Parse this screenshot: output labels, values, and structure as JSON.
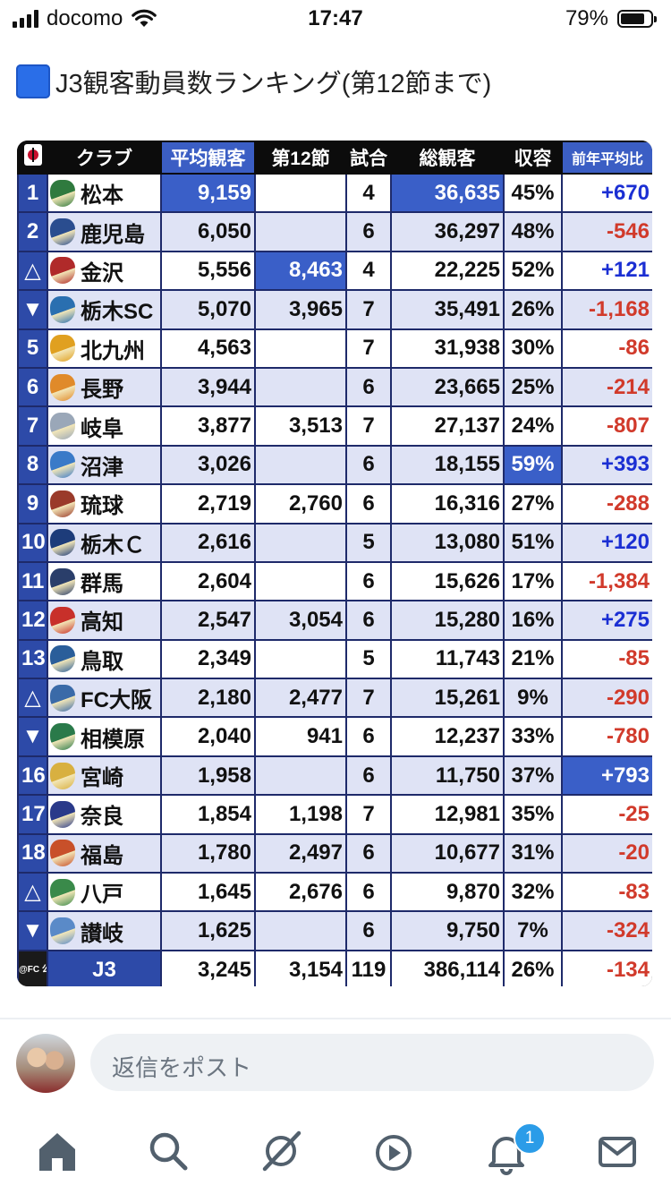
{
  "status_bar": {
    "carrier": "docomo",
    "time": "17:47",
    "battery": "79%",
    "battery_level": 0.79
  },
  "post": {
    "title": "J3観客動員数ランキング(第12節まで)"
  },
  "table": {
    "headers": {
      "club": "クラブ",
      "avg": "平均観客",
      "matchday": "第12節",
      "games": "試合",
      "total": "総観客",
      "capacity": "収容",
      "prev": "前年平均比"
    },
    "rows": [
      {
        "rank": "1",
        "club": "松本",
        "avg": "9,159",
        "md": "",
        "games": "4",
        "total": "36,635",
        "cap": "45%",
        "prev": "+670",
        "crest": "#2f7a3e"
      },
      {
        "rank": "2",
        "club": "鹿児島",
        "avg": "6,050",
        "md": "",
        "games": "6",
        "total": "36,297",
        "cap": "48%",
        "prev": "-546",
        "crest": "#2a4d8f"
      },
      {
        "rank": "△",
        "club": "金沢",
        "avg": "5,556",
        "md": "8,463",
        "games": "4",
        "total": "22,225",
        "cap": "52%",
        "prev": "+121",
        "crest": "#b02a2a"
      },
      {
        "rank": "▼",
        "club": "栃木SC",
        "avg": "5,070",
        "md": "3,965",
        "games": "7",
        "total": "35,491",
        "cap": "26%",
        "prev": "-1,168",
        "crest": "#2a6fb0"
      },
      {
        "rank": "5",
        "club": "北九州",
        "avg": "4,563",
        "md": "",
        "games": "7",
        "total": "31,938",
        "cap": "30%",
        "prev": "-86",
        "crest": "#e0a020"
      },
      {
        "rank": "6",
        "club": "長野",
        "avg": "3,944",
        "md": "",
        "games": "6",
        "total": "23,665",
        "cap": "25%",
        "prev": "-214",
        "crest": "#e08a2a"
      },
      {
        "rank": "7",
        "club": "岐阜",
        "avg": "3,877",
        "md": "3,513",
        "games": "7",
        "total": "27,137",
        "cap": "24%",
        "prev": "-807",
        "crest": "#9aa7b8"
      },
      {
        "rank": "8",
        "club": "沼津",
        "avg": "3,026",
        "md": "",
        "games": "6",
        "total": "18,155",
        "cap": "59%",
        "prev": "+393",
        "crest": "#3a7ac8"
      },
      {
        "rank": "9",
        "club": "琉球",
        "avg": "2,719",
        "md": "2,760",
        "games": "6",
        "total": "16,316",
        "cap": "27%",
        "prev": "-288",
        "crest": "#9a3a2a"
      },
      {
        "rank": "10",
        "club": "栃木Ｃ",
        "avg": "2,616",
        "md": "",
        "games": "5",
        "total": "13,080",
        "cap": "51%",
        "prev": "+120",
        "crest": "#1d3c7a"
      },
      {
        "rank": "11",
        "club": "群馬",
        "avg": "2,604",
        "md": "",
        "games": "6",
        "total": "15,626",
        "cap": "17%",
        "prev": "-1,384",
        "crest": "#2a3e6a"
      },
      {
        "rank": "12",
        "club": "高知",
        "avg": "2,547",
        "md": "3,054",
        "games": "6",
        "total": "15,280",
        "cap": "16%",
        "prev": "+275",
        "crest": "#c8302a"
      },
      {
        "rank": "13",
        "club": "鳥取",
        "avg": "2,349",
        "md": "",
        "games": "5",
        "total": "11,743",
        "cap": "21%",
        "prev": "-85",
        "crest": "#2a5e9a"
      },
      {
        "rank": "△",
        "club": "FC大阪",
        "avg": "2,180",
        "md": "2,477",
        "games": "7",
        "total": "15,261",
        "cap": "9%",
        "prev": "-290",
        "crest": "#3a6aa8"
      },
      {
        "rank": "▼",
        "club": "相模原",
        "avg": "2,040",
        "md": "941",
        "games": "6",
        "total": "12,237",
        "cap": "33%",
        "prev": "-780",
        "crest": "#2a7a4a"
      },
      {
        "rank": "16",
        "club": "宮崎",
        "avg": "1,958",
        "md": "",
        "games": "6",
        "total": "11,750",
        "cap": "37%",
        "prev": "+793",
        "crest": "#d8b040"
      },
      {
        "rank": "17",
        "club": "奈良",
        "avg": "1,854",
        "md": "1,198",
        "games": "7",
        "total": "12,981",
        "cap": "35%",
        "prev": "-25",
        "crest": "#2a3a8a"
      },
      {
        "rank": "18",
        "club": "福島",
        "avg": "1,780",
        "md": "2,497",
        "games": "6",
        "total": "10,677",
        "cap": "31%",
        "prev": "-20",
        "crest": "#c8502a"
      },
      {
        "rank": "△",
        "club": "八戸",
        "avg": "1,645",
        "md": "2,676",
        "games": "6",
        "total": "9,870",
        "cap": "32%",
        "prev": "-83",
        "crest": "#3a8a4a"
      },
      {
        "rank": "▼",
        "club": "讃岐",
        "avg": "1,625",
        "md": "",
        "games": "6",
        "total": "9,750",
        "cap": "7%",
        "prev": "-324",
        "crest": "#5a8ac8"
      }
    ],
    "total": {
      "source": "@FC 公園",
      "label": "J3",
      "avg": "3,245",
      "md": "3,154",
      "games": "119",
      "total": "386,114",
      "cap": "26%",
      "prev": "-134"
    }
  },
  "reply": {
    "placeholder": "返信をポスト"
  },
  "tabbar": {
    "notification_count": "1",
    "icons": [
      "home-icon",
      "search-icon",
      "grok-icon",
      "video-icon",
      "notifications-icon",
      "messages-icon"
    ]
  }
}
